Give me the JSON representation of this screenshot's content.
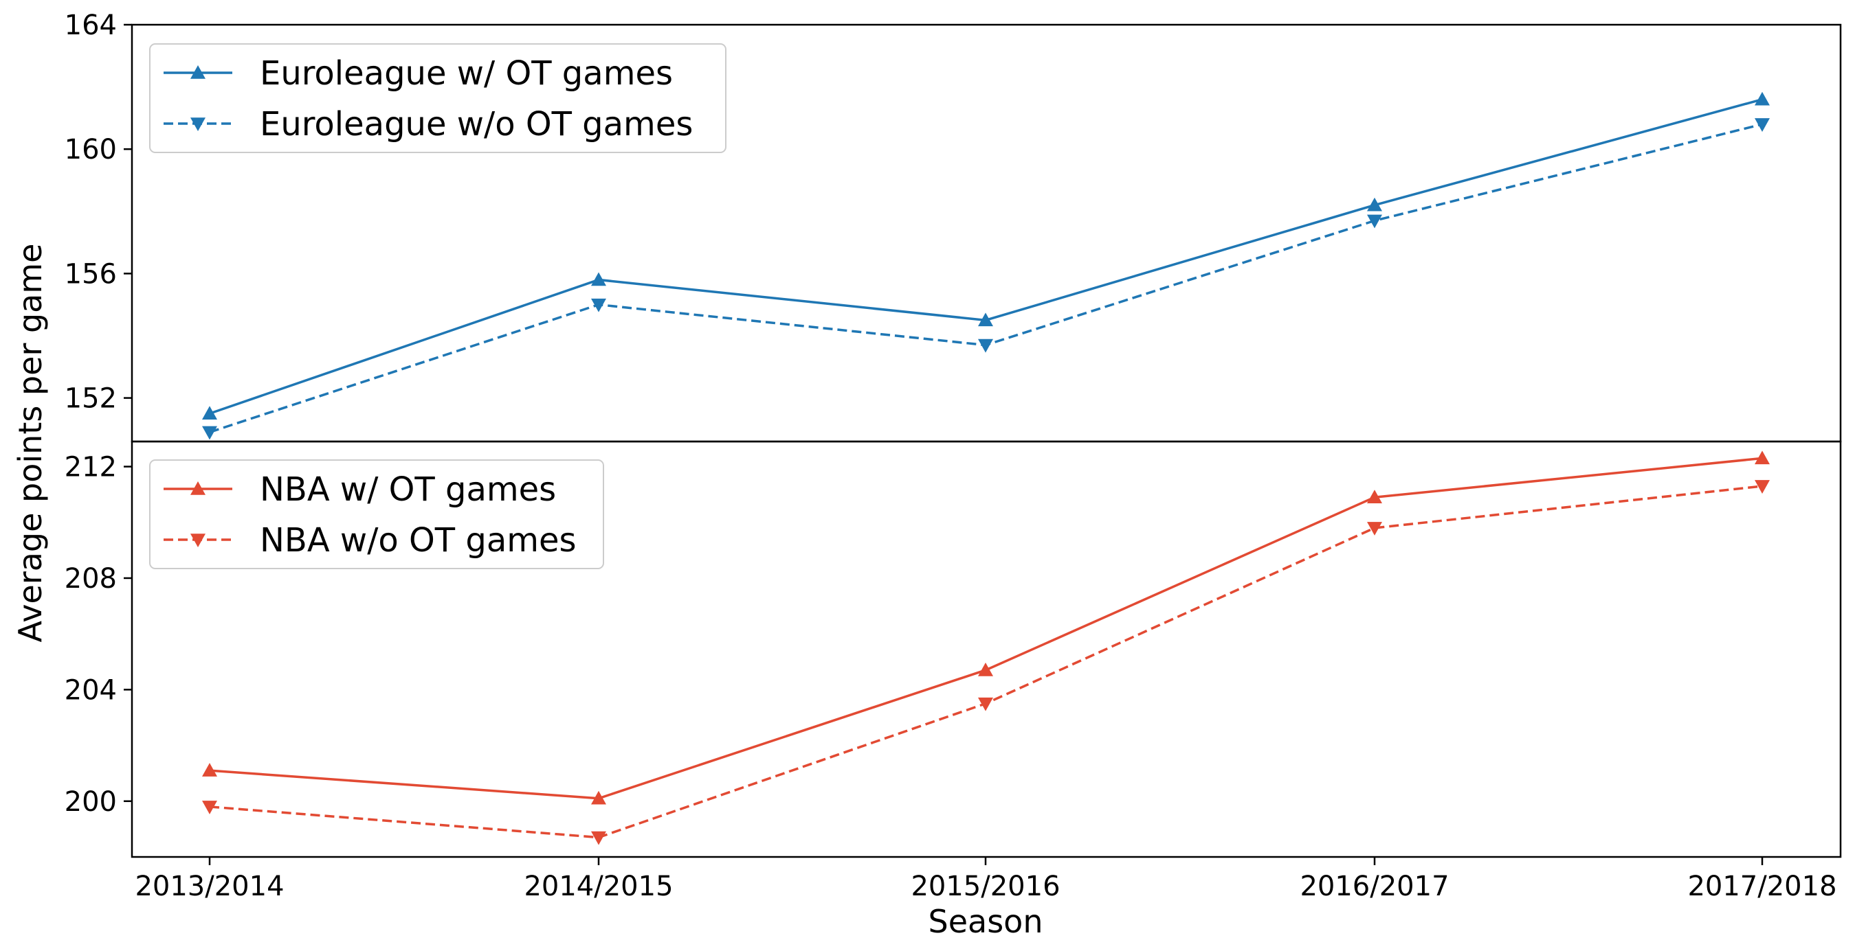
{
  "chart_data": [
    {
      "type": "line",
      "categories": [
        "2013/2014",
        "2014/2015",
        "2015/2016",
        "2016/2017",
        "2017/2018"
      ],
      "series": [
        {
          "name": "Euroleague w/ OT games",
          "values": [
            151.5,
            155.8,
            154.5,
            158.2,
            161.6
          ],
          "color": "#1f77b4",
          "style": "solid",
          "marker": "triangle-up"
        },
        {
          "name": "Euroleague w/o OT games",
          "values": [
            150.9,
            155.0,
            153.7,
            157.7,
            160.8
          ],
          "color": "#1f77b4",
          "style": "dashed",
          "marker": "triangle-down"
        }
      ],
      "ylim": [
        150.6,
        164
      ],
      "yticks": [
        "152",
        "156",
        "160",
        "164"
      ],
      "legend": "upper-left",
      "grid": false
    },
    {
      "type": "line",
      "categories": [
        "2013/2014",
        "2014/2015",
        "2015/2016",
        "2016/2017",
        "2017/2018"
      ],
      "series": [
        {
          "name": "NBA w/ OT games",
          "values": [
            201.1,
            200.1,
            204.7,
            210.9,
            212.3
          ],
          "color": "#e24a33",
          "style": "solid",
          "marker": "triangle-up"
        },
        {
          "name": "NBA w/o OT games",
          "values": [
            199.8,
            198.7,
            203.5,
            209.8,
            211.3
          ],
          "color": "#e24a33",
          "style": "dashed",
          "marker": "triangle-down"
        }
      ],
      "ylim": [
        198,
        212.9
      ],
      "yticks": [
        "200",
        "204",
        "208",
        "212"
      ],
      "legend": "upper-left",
      "grid": false
    }
  ],
  "xlabel": "Season",
  "ylabel": "Average points per game"
}
